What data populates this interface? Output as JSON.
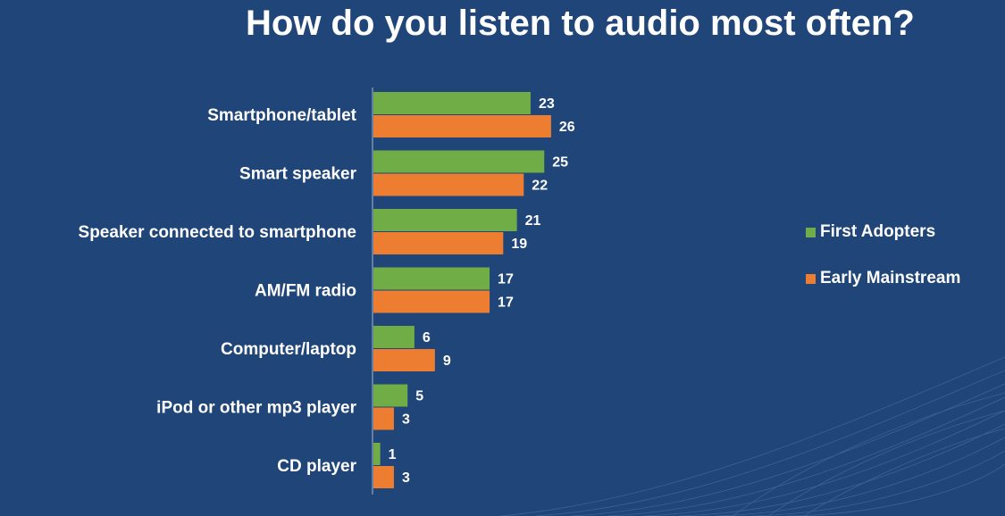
{
  "colors": {
    "background": "#1f4579",
    "first_adopters": "#70ad47",
    "early_mainstream": "#ed7d31",
    "text": "#ffffff"
  },
  "chart_data": {
    "type": "bar",
    "orientation": "horizontal",
    "title": "How do you listen to audio most often?",
    "categories": [
      "Smartphone/tablet",
      "Smart speaker",
      "Speaker connected to smartphone",
      "AM/FM radio",
      "Computer/laptop",
      "iPod or other mp3 player",
      "CD player"
    ],
    "series": [
      {
        "name": "First Adopters",
        "values": [
          23,
          25,
          21,
          17,
          6,
          5,
          1
        ]
      },
      {
        "name": "Early Mainstream",
        "values": [
          26,
          22,
          19,
          17,
          9,
          3,
          3
        ]
      }
    ],
    "legend_position": "right",
    "data_labels": true,
    "grid": false
  }
}
